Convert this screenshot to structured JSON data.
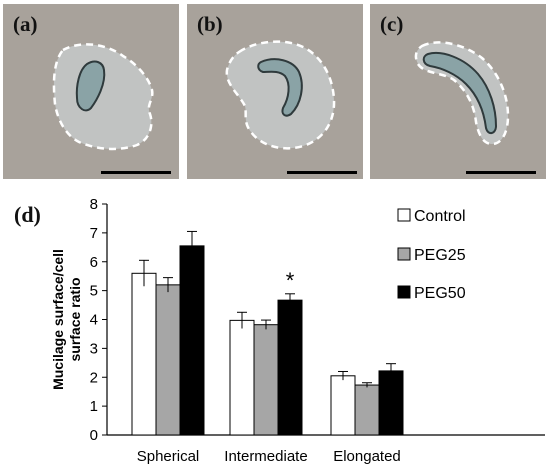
{
  "panels": [
    {
      "label": "(a)",
      "shape": "spherical"
    },
    {
      "label": "(b)",
      "shape": "intermediate"
    },
    {
      "label": "(c)",
      "shape": "elongated"
    }
  ],
  "colors": {
    "micro_background": "#a8a29b",
    "halo": "#c5c9c9",
    "cell_fill": "#8aa3a6",
    "dashed_outline": "#ffffff",
    "scale_bar": "#000000"
  },
  "chart_panel_label": "(d)",
  "chart_data": {
    "type": "bar",
    "categories": [
      "Spherical",
      "Intermediate",
      "Elongated"
    ],
    "ylabel": "Mucilage surface/cell surface ratio",
    "ylabel_lines": [
      "Mucilage surface/cell",
      "surface ratio"
    ],
    "ylim": [
      0,
      8
    ],
    "yticks": [
      0,
      1,
      2,
      3,
      4,
      5,
      6,
      7,
      8
    ],
    "grid": false,
    "legend_position": "top-right",
    "series": [
      {
        "name": "Control",
        "color": "#ffffff",
        "values": [
          5.6,
          3.97,
          2.05
        ],
        "errors": [
          0.45,
          0.28,
          0.15
        ]
      },
      {
        "name": "PEG25",
        "color": "#a6a6a6",
        "values": [
          5.2,
          3.82,
          1.73
        ],
        "errors": [
          0.25,
          0.16,
          0.08
        ]
      },
      {
        "name": "PEG50",
        "color": "#000000",
        "values": [
          6.55,
          4.67,
          2.22
        ],
        "errors": [
          0.5,
          0.22,
          0.25
        ]
      }
    ],
    "annotations": [
      {
        "text": "*",
        "category": "Intermediate",
        "series": "PEG50"
      }
    ]
  }
}
